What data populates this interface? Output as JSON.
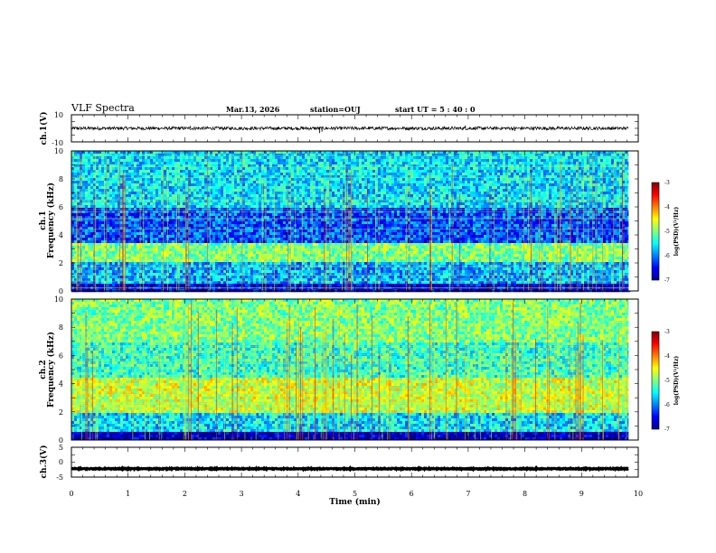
{
  "header": {
    "title": "VLF Spectra",
    "date": "Mar.13, 2026",
    "station": "station=OUJ",
    "start_time": "start  UT =   5 : 40 : 0"
  },
  "chart_data": [
    {
      "type": "line",
      "name": "ch1-waveform",
      "ylabel": "ch.1(V)",
      "ylim": [
        -10,
        10
      ],
      "yticks": [
        "10",
        "-10"
      ],
      "xlim": [
        0,
        10
      ],
      "visible_until": 9.83,
      "baseline": 0,
      "noise_amplitude": 1.2,
      "spikes": [
        {
          "t": 4.38,
          "v": -3.5
        },
        {
          "t": 4.42,
          "v": -2.5
        },
        {
          "t": 7.82,
          "v": -2.0
        },
        {
          "t": 6.95,
          "v": 2.0
        },
        {
          "t": 2.1,
          "v": 1.8
        }
      ]
    },
    {
      "type": "heatmap",
      "name": "ch1-spectrogram",
      "ylabel_top": "ch.1",
      "ylabel": "Frequency  (kHz)",
      "ylim": [
        0,
        10
      ],
      "yticks": [
        "0",
        "2",
        "4",
        "6",
        "8",
        "10"
      ],
      "xlim": [
        0,
        10
      ],
      "visible_until": 9.83,
      "colorbar": {
        "label": "log(PSD)(V²/Hz)",
        "range": [
          -7,
          -3
        ],
        "ticks": [
          "-3",
          "-4",
          "-5",
          "-6",
          "-7"
        ]
      },
      "bands": [
        {
          "f_low": 0.0,
          "f_high": 0.6,
          "level": -6.6
        },
        {
          "f_low": 0.6,
          "f_high": 2.0,
          "level": -5.8
        },
        {
          "f_low": 2.0,
          "f_high": 3.5,
          "level": -5.0
        },
        {
          "f_low": 3.5,
          "f_high": 6.0,
          "level": -6.2
        },
        {
          "f_low": 6.0,
          "f_high": 10.0,
          "level": -5.6
        }
      ],
      "sferic_density": 0.55
    },
    {
      "type": "heatmap",
      "name": "ch2-spectrogram",
      "ylabel_top": "ch.2",
      "ylabel": "Frequency  (kHz)",
      "ylim": [
        0,
        10
      ],
      "yticks": [
        "0",
        "2",
        "4",
        "6",
        "8",
        "10"
      ],
      "xlim": [
        0,
        10
      ],
      "visible_until": 9.83,
      "colorbar": {
        "label": "log(PSD)(V²/Hz)",
        "range": [
          -7,
          -3
        ],
        "ticks": [
          "-3",
          "-4",
          "-5",
          "-6",
          "-7"
        ]
      },
      "bands": [
        {
          "f_low": 0.0,
          "f_high": 0.5,
          "level": -6.8
        },
        {
          "f_low": 0.5,
          "f_high": 2.0,
          "level": -5.6
        },
        {
          "f_low": 2.0,
          "f_high": 4.5,
          "level": -4.7
        },
        {
          "f_low": 4.5,
          "f_high": 7.0,
          "level": -5.3
        },
        {
          "f_low": 7.0,
          "f_high": 10.0,
          "level": -5.0
        }
      ],
      "sferic_density": 0.65
    },
    {
      "type": "line",
      "name": "ch3-waveform",
      "ylabel": "ch.3(V)",
      "ylim": [
        -5,
        5
      ],
      "yticks": [
        "5",
        "0",
        "-5"
      ],
      "xlim": [
        0,
        10
      ],
      "visible_until": 9.83,
      "baseline": -2.2,
      "noise_amplitude": 0.15,
      "spikes": []
    }
  ],
  "x_axis": {
    "label": "Time  (min)",
    "ticks": [
      "0",
      "1",
      "2",
      "3",
      "4",
      "5",
      "6",
      "7",
      "8",
      "9",
      "10"
    ]
  },
  "colors": {
    "jet": [
      "#00008f",
      "#0000ff",
      "#00ffff",
      "#ffff00",
      "#ff0000",
      "#800000"
    ]
  }
}
